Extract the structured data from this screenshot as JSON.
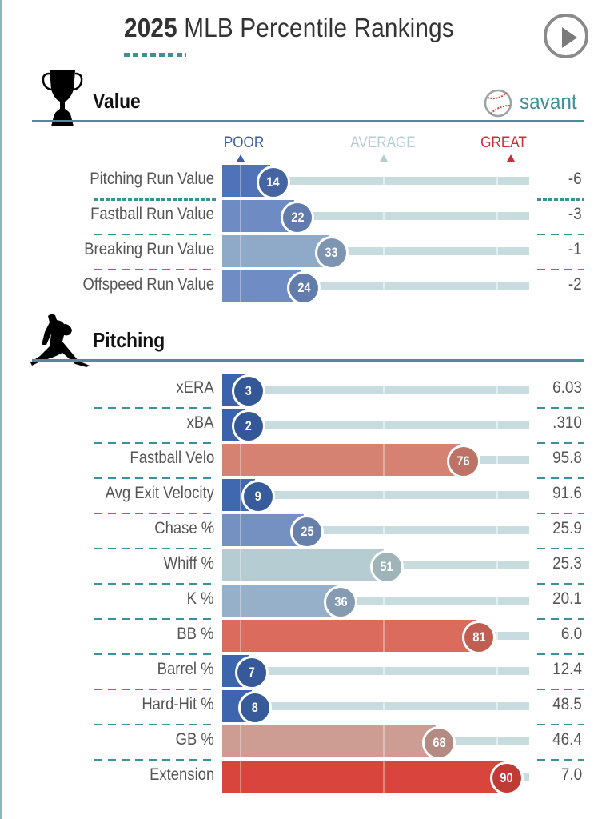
{
  "header": {
    "title_year": "2025",
    "title_rest": " MLB Percentile Rankings",
    "play_icon": "play-icon"
  },
  "branding": {
    "logo_text": "savant",
    "logo_icon": "baseball-icon"
  },
  "scale": {
    "poor": "POOR",
    "average": "AVERAGE",
    "great": "GREAT",
    "colors": {
      "poor": "#3b63ad",
      "average": "#b3cdd2",
      "great": "#d22d2d"
    }
  },
  "chart_data": [
    {
      "type": "bar",
      "title": "Value",
      "icon": "trophy-icon",
      "xlim": [
        0,
        100
      ],
      "rows": [
        {
          "label": "Pitching Run Value",
          "percentile": 14,
          "stat": "-6",
          "color": "#4f72b8"
        },
        {
          "label": "Fastball Run Value",
          "percentile": 22,
          "stat": "-3",
          "color": "#6e8cc3"
        },
        {
          "label": "Breaking Run Value",
          "percentile": 33,
          "stat": "-1",
          "color": "#8fa9c9"
        },
        {
          "label": "Offspeed Run Value",
          "percentile": 24,
          "stat": "-2",
          "color": "#6f8dc4"
        }
      ]
    },
    {
      "type": "bar",
      "title": "Pitching",
      "icon": "pitcher-icon",
      "xlim": [
        0,
        100
      ],
      "rows": [
        {
          "label": "xERA",
          "percentile": 3,
          "stat": "6.03",
          "color": "#3b63ad"
        },
        {
          "label": "xBA",
          "percentile": 2,
          "stat": ".310",
          "color": "#3b63ad"
        },
        {
          "label": "Fastball Velo",
          "percentile": 76,
          "stat": "95.8",
          "color": "#d68272"
        },
        {
          "label": "Avg Exit Velocity",
          "percentile": 9,
          "stat": "91.6",
          "color": "#3f68b0"
        },
        {
          "label": "Chase %",
          "percentile": 25,
          "stat": "25.9",
          "color": "#7591c2"
        },
        {
          "label": "Whiff %",
          "percentile": 51,
          "stat": "25.3",
          "color": "#b5cdd2"
        },
        {
          "label": "K %",
          "percentile": 36,
          "stat": "20.1",
          "color": "#97b0ca"
        },
        {
          "label": "BB %",
          "percentile": 81,
          "stat": "6.0",
          "color": "#db6b5d"
        },
        {
          "label": "Barrel %",
          "percentile": 7,
          "stat": "12.4",
          "color": "#3c65ae"
        },
        {
          "label": "Hard-Hit %",
          "percentile": 8,
          "stat": "48.5",
          "color": "#3d66af"
        },
        {
          "label": "GB %",
          "percentile": 68,
          "stat": "46.4",
          "color": "#cd9d94"
        },
        {
          "label": "Extension",
          "percentile": 90,
          "stat": "7.0",
          "color": "#d9443c"
        }
      ]
    }
  ]
}
